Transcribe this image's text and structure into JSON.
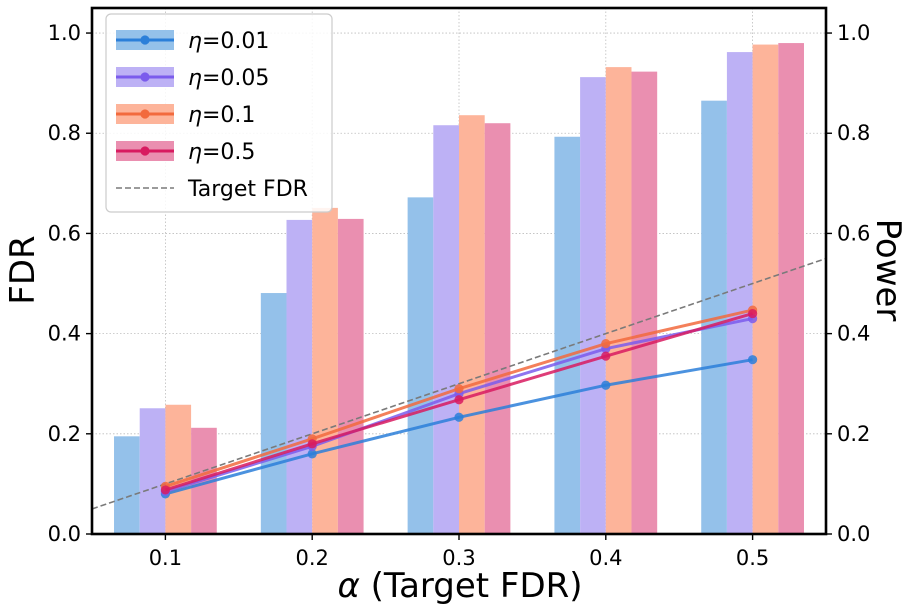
{
  "chart_data": {
    "type": "bar+line",
    "x": [
      0.1,
      0.2,
      0.3,
      0.4,
      0.5
    ],
    "x_tick_labels": [
      "0.1",
      "0.2",
      "0.3",
      "0.4",
      "0.5"
    ],
    "xlabel_symbol": "α",
    "xlabel": " (Target FDR)",
    "ylabel_left": "FDR",
    "ylabel_right": "Power",
    "ylim_left": [
      0,
      1.05
    ],
    "ylim_right": [
      0,
      1.05
    ],
    "xlim": [
      0.05,
      0.55
    ],
    "y_ticks": [
      0.0,
      0.2,
      0.4,
      0.6,
      0.8,
      1.0
    ],
    "y_tick_labels": [
      "0.0",
      "0.2",
      "0.4",
      "0.6",
      "0.8",
      "1.0"
    ],
    "grid": true,
    "legend_position": "top-left",
    "series": [
      {
        "symbol": "η",
        "label": "=0.01",
        "line_color": "#2b7fd9",
        "bar_color": "#94c1ea",
        "fdr": [
          0.08,
          0.16,
          0.233,
          0.297,
          0.348
        ],
        "power": [
          0.195,
          0.481,
          0.672,
          0.793,
          0.865
        ]
      },
      {
        "symbol": "η",
        "label": "=0.05",
        "line_color": "#7b5cec",
        "bar_color": "#bdb1f5",
        "fdr": [
          0.085,
          0.175,
          0.28,
          0.37,
          0.43
        ],
        "power": [
          0.251,
          0.627,
          0.816,
          0.912,
          0.962
        ]
      },
      {
        "symbol": "η",
        "label": "=0.1",
        "line_color": "#f26a3d",
        "bar_color": "#fdb49a",
        "fdr": [
          0.095,
          0.19,
          0.29,
          0.38,
          0.447
        ],
        "power": [
          0.258,
          0.651,
          0.836,
          0.932,
          0.977
        ]
      },
      {
        "symbol": "η",
        "label": "=0.5",
        "line_color": "#d81b60",
        "bar_color": "#ea8fb0",
        "fdr": [
          0.088,
          0.18,
          0.268,
          0.355,
          0.44
        ],
        "power": [
          0.212,
          0.629,
          0.82,
          0.923,
          0.98
        ]
      }
    ],
    "target_line": {
      "label": "Target FDR",
      "color": "#7a7a7a",
      "points": [
        [
          0.05,
          0.05
        ],
        [
          0.55,
          0.55
        ]
      ]
    }
  }
}
